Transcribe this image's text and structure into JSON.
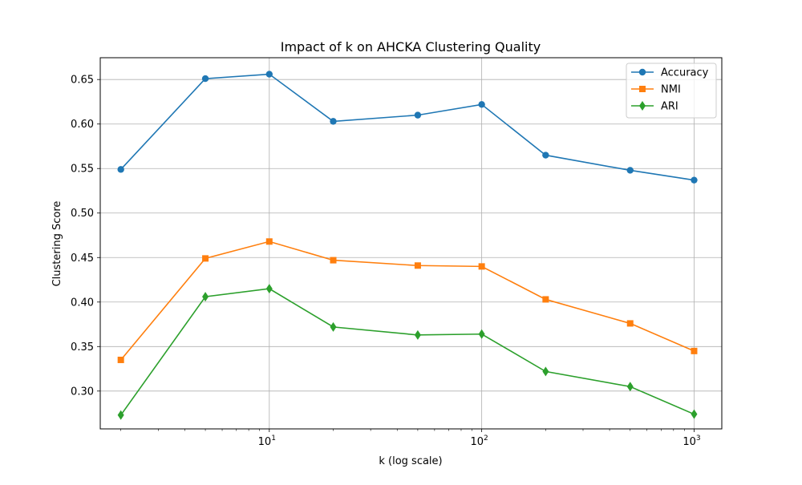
{
  "chart_data": {
    "type": "line",
    "title": "Impact of k on AHCKA Clustering Quality",
    "xlabel": "k (log scale)",
    "ylabel": "Clustering Score",
    "xscale": "log",
    "xlim": [
      1.6,
      1350
    ],
    "ylim": [
      0.2575,
      0.6745
    ],
    "x": [
      2,
      5,
      10,
      20,
      50,
      100,
      200,
      500,
      1000
    ],
    "x_ticks": [
      {
        "value": 10,
        "base": "10",
        "exp": "1"
      },
      {
        "value": 100,
        "base": "10",
        "exp": "2"
      },
      {
        "value": 1000,
        "base": "10",
        "exp": "3"
      }
    ],
    "y_ticks": [
      {
        "value": 0.3,
        "label": "0.30"
      },
      {
        "value": 0.35,
        "label": "0.35"
      },
      {
        "value": 0.4,
        "label": "0.40"
      },
      {
        "value": 0.45,
        "label": "0.45"
      },
      {
        "value": 0.5,
        "label": "0.50"
      },
      {
        "value": 0.55,
        "label": "0.55"
      },
      {
        "value": 0.6,
        "label": "0.60"
      },
      {
        "value": 0.65,
        "label": "0.65"
      }
    ],
    "grid": true,
    "legend_position": "top-right",
    "series": [
      {
        "name": "Accuracy",
        "color": "#1f77b4",
        "marker": "circle",
        "values": [
          0.549,
          0.651,
          0.656,
          0.603,
          0.61,
          0.622,
          0.565,
          0.548,
          0.537
        ]
      },
      {
        "name": "NMI",
        "color": "#ff7f0e",
        "marker": "square",
        "values": [
          0.335,
          0.449,
          0.468,
          0.447,
          0.441,
          0.44,
          0.403,
          0.376,
          0.345
        ]
      },
      {
        "name": "ARI",
        "color": "#2ca02c",
        "marker": "diamond",
        "values": [
          0.273,
          0.406,
          0.415,
          0.372,
          0.363,
          0.364,
          0.322,
          0.305,
          0.274
        ]
      }
    ]
  }
}
